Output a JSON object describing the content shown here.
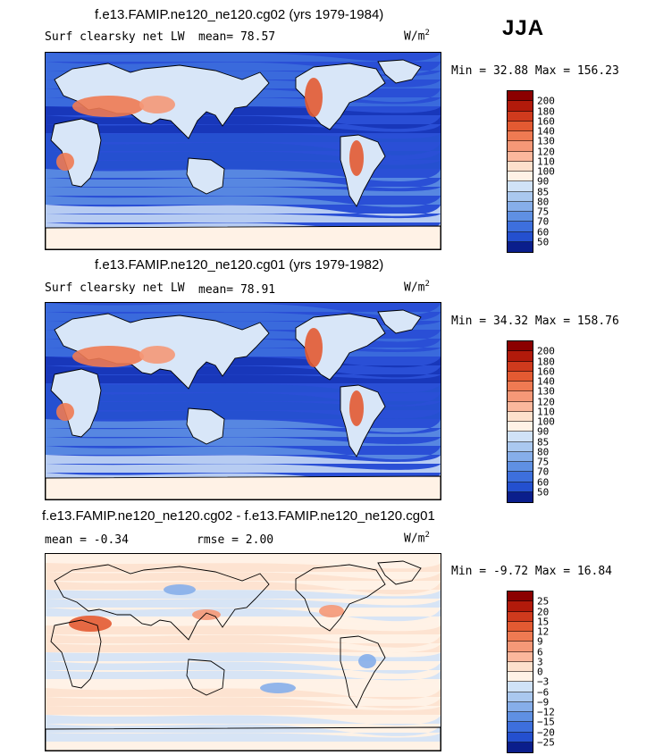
{
  "season": "JJA",
  "unit": "W/m",
  "unit_sup": "2",
  "panels": [
    {
      "title": "f.e13.FAMIP.ne120_ne120.cg02 (yrs 1979-1984)",
      "variable": "Surf clearsky net LW",
      "stat": "mean=  78.57",
      "minmax": "Min =  32.88 Max = 156.23"
    },
    {
      "title": "f.e13.FAMIP.ne120_ne120.cg01 (yrs 1979-1982)",
      "variable": "Surf clearsky net LW",
      "stat": "mean=  78.91",
      "minmax": "Min =  34.32 Max = 158.76"
    },
    {
      "title": "f.e13.FAMIP.ne120_ne120.cg02 - f.e13.FAMIP.ne120_ne120.cg01",
      "stat": "mean =  -0.34",
      "rmse": "rmse =   2.00",
      "minmax": "Min =  -9.72 Max =  16.84"
    }
  ],
  "chart_data": [
    {
      "type": "heatmap",
      "title": "f.e13.FAMIP.ne120_ne120.cg02 (yrs 1979-1984)",
      "variable": "Surf clearsky net LW",
      "season": "JJA",
      "units": "W/m2",
      "mean": 78.57,
      "min": 32.88,
      "max": 156.23,
      "levels": [
        50,
        60,
        70,
        75,
        80,
        85,
        90,
        100,
        110,
        120,
        130,
        140,
        160,
        180,
        200
      ],
      "level_labels": [
        "200",
        "180",
        "160",
        "140",
        "130",
        "120",
        "110",
        "100",
        "90",
        "85",
        "80",
        "75",
        "70",
        "60",
        "50"
      ]
    },
    {
      "type": "heatmap",
      "title": "f.e13.FAMIP.ne120_ne120.cg01 (yrs 1979-1982)",
      "variable": "Surf clearsky net LW",
      "season": "JJA",
      "units": "W/m2",
      "mean": 78.91,
      "min": 34.32,
      "max": 158.76,
      "levels": [
        50,
        60,
        70,
        75,
        80,
        85,
        90,
        100,
        110,
        120,
        130,
        140,
        160,
        180,
        200
      ],
      "level_labels": [
        "200",
        "180",
        "160",
        "140",
        "130",
        "120",
        "110",
        "100",
        "90",
        "85",
        "80",
        "75",
        "70",
        "60",
        "50"
      ]
    },
    {
      "type": "heatmap",
      "title": "f.e13.FAMIP.ne120_ne120.cg02 - f.e13.FAMIP.ne120_ne120.cg01",
      "season": "JJA",
      "units": "W/m2",
      "mean": -0.34,
      "rmse": 2.0,
      "min": -9.72,
      "max": 16.84,
      "levels": [
        -25,
        -20,
        -15,
        -12,
        -9,
        -6,
        -3,
        0,
        3,
        6,
        9,
        12,
        15,
        20,
        25
      ],
      "level_labels": [
        "25",
        "20",
        "15",
        "12",
        "9",
        "6",
        "3",
        "0",
        "−3",
        "−6",
        "−9",
        "−12",
        "−15",
        "−20",
        "−25"
      ]
    }
  ],
  "colors": {
    "palette": [
      "#8b0000",
      "#b21a0b",
      "#cf3a1d",
      "#e35a32",
      "#ef7a52",
      "#f59877",
      "#fbb79c",
      "#fde0cc",
      "#fff2e6",
      "#d0e2f7",
      "#aac8ef",
      "#86aeea",
      "#5f90e3",
      "#3d6fdd",
      "#2450cf",
      "#1532b5",
      "#0a1e8c"
    ],
    "land": "#d8e6f8",
    "ocean_deep": "#2a4fd6"
  }
}
